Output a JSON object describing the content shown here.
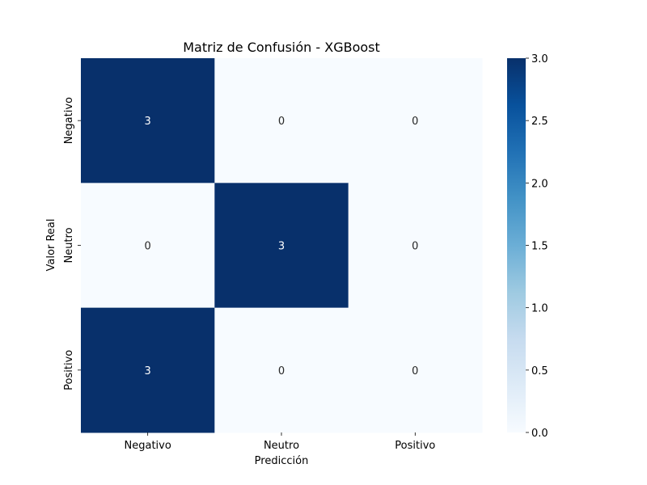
{
  "chart_data": {
    "type": "heatmap",
    "title": "Matriz de Confusión - XGBoost",
    "xlabel": "Predicción",
    "ylabel": "Valor Real",
    "x_categories": [
      "Negativo",
      "Neutro",
      "Positivo"
    ],
    "y_categories": [
      "Negativo",
      "Neutro",
      "Positivo"
    ],
    "values": [
      [
        3,
        0,
        0
      ],
      [
        0,
        3,
        0
      ],
      [
        3,
        0,
        0
      ]
    ],
    "vmin": 0,
    "vmax": 3,
    "colormap": [
      "#f7fbff",
      "#deebf7",
      "#c6dbef",
      "#9ecae1",
      "#6baed6",
      "#4292c6",
      "#2171b5",
      "#08519c",
      "#08306b"
    ],
    "colorbar_ticks": [
      "0.0",
      "0.5",
      "1.0",
      "1.5",
      "2.0",
      "2.5",
      "3.0"
    ],
    "colorbar_tick_values": [
      0,
      0.5,
      1.0,
      1.5,
      2.0,
      2.5,
      3.0
    ],
    "annotate": true
  }
}
